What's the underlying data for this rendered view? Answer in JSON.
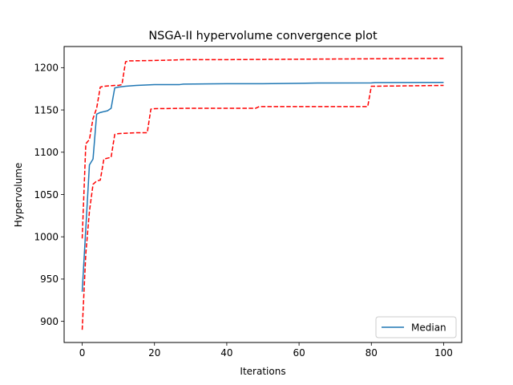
{
  "chart_data": {
    "type": "line",
    "title": "NSGA-II hypervolume convergence plot",
    "xlabel": "Iterations",
    "ylabel": "Hypervolume",
    "xlim": [
      -5,
      105
    ],
    "ylim": [
      875,
      1225
    ],
    "x_ticks": [
      0,
      20,
      40,
      60,
      80,
      100
    ],
    "y_ticks": [
      900,
      950,
      1000,
      1050,
      1100,
      1150,
      1200
    ],
    "grid": false,
    "legend_position": "lower right",
    "series": [
      {
        "name": "Median",
        "color": "#1f77b4",
        "style": "solid",
        "points": [
          [
            0,
            935
          ],
          [
            1,
            1010
          ],
          [
            2,
            1085
          ],
          [
            3,
            1092
          ],
          [
            4,
            1145
          ],
          [
            5,
            1147
          ],
          [
            7,
            1149
          ],
          [
            8,
            1152
          ],
          [
            9,
            1176
          ],
          [
            10,
            1177
          ],
          [
            12,
            1178
          ],
          [
            15,
            1179
          ],
          [
            20,
            1180
          ],
          [
            27,
            1180
          ],
          [
            28,
            1180.5
          ],
          [
            40,
            1181
          ],
          [
            50,
            1181
          ],
          [
            60,
            1181.5
          ],
          [
            65,
            1181.8
          ],
          [
            80,
            1182
          ],
          [
            81,
            1182.3
          ],
          [
            100,
            1182.5
          ]
        ]
      },
      {
        "color": "#ff0000",
        "style": "dashed",
        "points": [
          [
            0,
            998
          ],
          [
            1,
            1110
          ],
          [
            2,
            1115
          ],
          [
            3,
            1140
          ],
          [
            4,
            1152
          ],
          [
            5,
            1177
          ],
          [
            6,
            1178
          ],
          [
            9,
            1179
          ],
          [
            10,
            1179
          ],
          [
            11,
            1180
          ],
          [
            12,
            1207
          ],
          [
            13,
            1208
          ],
          [
            20,
            1208.5
          ],
          [
            25,
            1209
          ],
          [
            28,
            1209.5
          ],
          [
            40,
            1209.5
          ],
          [
            60,
            1210
          ],
          [
            80,
            1210.5
          ],
          [
            100,
            1211
          ]
        ]
      },
      {
        "color": "#ff0000",
        "style": "dashed",
        "points": [
          [
            0,
            890
          ],
          [
            1,
            980
          ],
          [
            2,
            1030
          ],
          [
            3,
            1062
          ],
          [
            4,
            1066
          ],
          [
            5,
            1067
          ],
          [
            6,
            1092
          ],
          [
            7,
            1093
          ],
          [
            8,
            1094
          ],
          [
            9,
            1121
          ],
          [
            10,
            1122
          ],
          [
            15,
            1123
          ],
          [
            18,
            1123
          ],
          [
            19,
            1151
          ],
          [
            20,
            1151.5
          ],
          [
            30,
            1152
          ],
          [
            48,
            1152
          ],
          [
            49,
            1154
          ],
          [
            79,
            1154
          ],
          [
            80,
            1178
          ],
          [
            90,
            1178.5
          ],
          [
            100,
            1179
          ]
        ]
      }
    ]
  }
}
